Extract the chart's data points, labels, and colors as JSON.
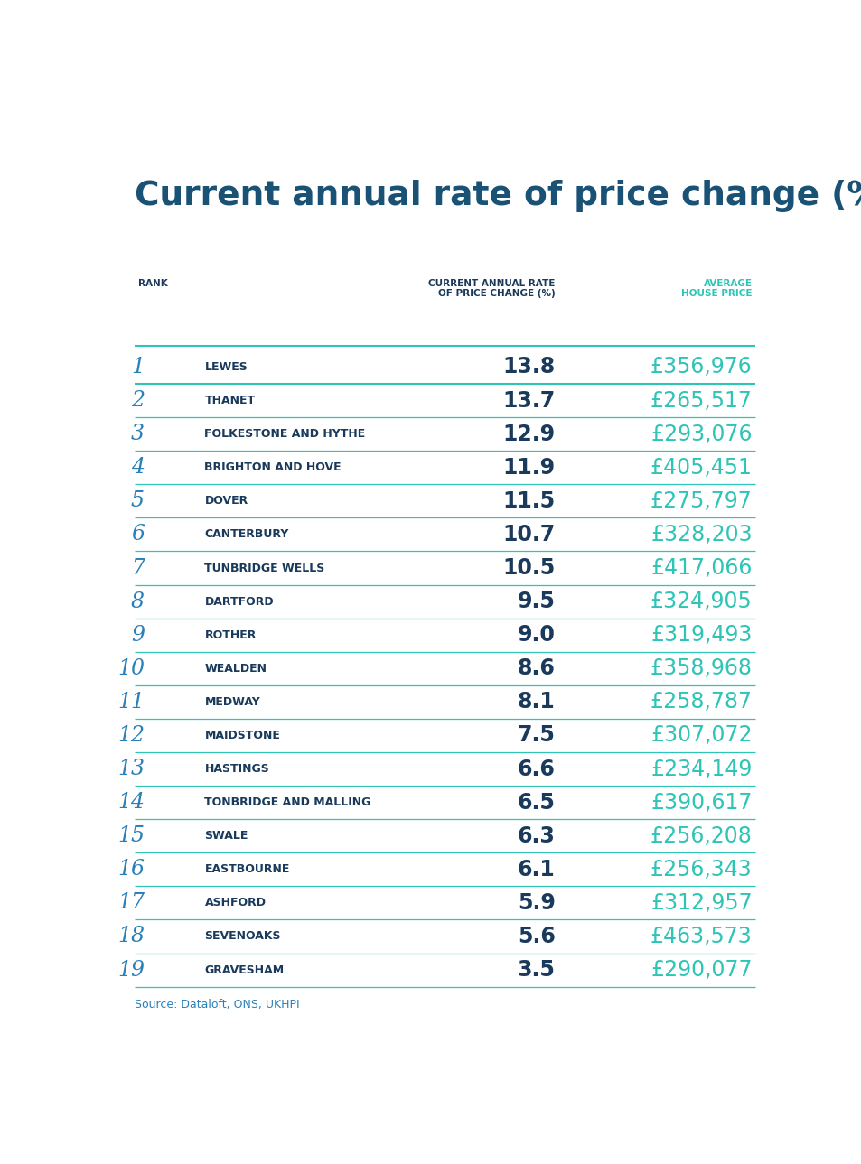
{
  "title": "Current annual rate of price change (%)",
  "title_color": "#1a5276",
  "background_color": "#ffffff",
  "header_rank": "RANK",
  "header_rate": "CURRENT ANNUAL RATE\nOF PRICE CHANGE (%)",
  "header_price": "AVERAGE\nHOUSE PRICE",
  "header_color": "#1a3a5c",
  "header_price_color": "#2ec4b6",
  "rank_color": "#2980b9",
  "area_color": "#1a3a5c",
  "rate_color": "#1a3a5c",
  "price_color": "#2ec4b6",
  "source_text": "Source: Dataloft, ONS, UKHPI",
  "source_color": "#2980b9",
  "divider_color": "#2ec4b6",
  "rows": [
    {
      "rank": "1",
      "area": "LEWES",
      "rate": "13.8",
      "price": "£356,976"
    },
    {
      "rank": "2",
      "area": "THANET",
      "rate": "13.7",
      "price": "£265,517"
    },
    {
      "rank": "3",
      "area": "FOLKESTONE AND HYTHE",
      "rate": "12.9",
      "price": "£293,076"
    },
    {
      "rank": "4",
      "area": "BRIGHTON AND HOVE",
      "rate": "11.9",
      "price": "£405,451"
    },
    {
      "rank": "5",
      "area": "DOVER",
      "rate": "11.5",
      "price": "£275,797"
    },
    {
      "rank": "6",
      "area": "CANTERBURY",
      "rate": "10.7",
      "price": "£328,203"
    },
    {
      "rank": "7",
      "area": "TUNBRIDGE WELLS",
      "rate": "10.5",
      "price": "£417,066"
    },
    {
      "rank": "8",
      "area": "DARTFORD",
      "rate": "9.5",
      "price": "£324,905"
    },
    {
      "rank": "9",
      "area": "ROTHER",
      "rate": "9.0",
      "price": "£319,493"
    },
    {
      "rank": "10",
      "area": "WEALDEN",
      "rate": "8.6",
      "price": "£358,968"
    },
    {
      "rank": "11",
      "area": "MEDWAY",
      "rate": "8.1",
      "price": "£258,787"
    },
    {
      "rank": "12",
      "area": "MAIDSTONE",
      "rate": "7.5",
      "price": "£307,072"
    },
    {
      "rank": "13",
      "area": "HASTINGS",
      "rate": "6.6",
      "price": "£234,149"
    },
    {
      "rank": "14",
      "area": "TONBRIDGE AND MALLING",
      "rate": "6.5",
      "price": "£390,617"
    },
    {
      "rank": "15",
      "area": "SWALE",
      "rate": "6.3",
      "price": "£256,208"
    },
    {
      "rank": "16",
      "area": "EASTBOURNE",
      "rate": "6.1",
      "price": "£256,343"
    },
    {
      "rank": "17",
      "area": "ASHFORD",
      "rate": "5.9",
      "price": "£312,957"
    },
    {
      "rank": "18",
      "area": "SEVENOAKS",
      "rate": "5.6",
      "price": "£463,573"
    },
    {
      "rank": "19",
      "area": "GRAVESHAM",
      "rate": "3.5",
      "price": "£290,077"
    }
  ]
}
